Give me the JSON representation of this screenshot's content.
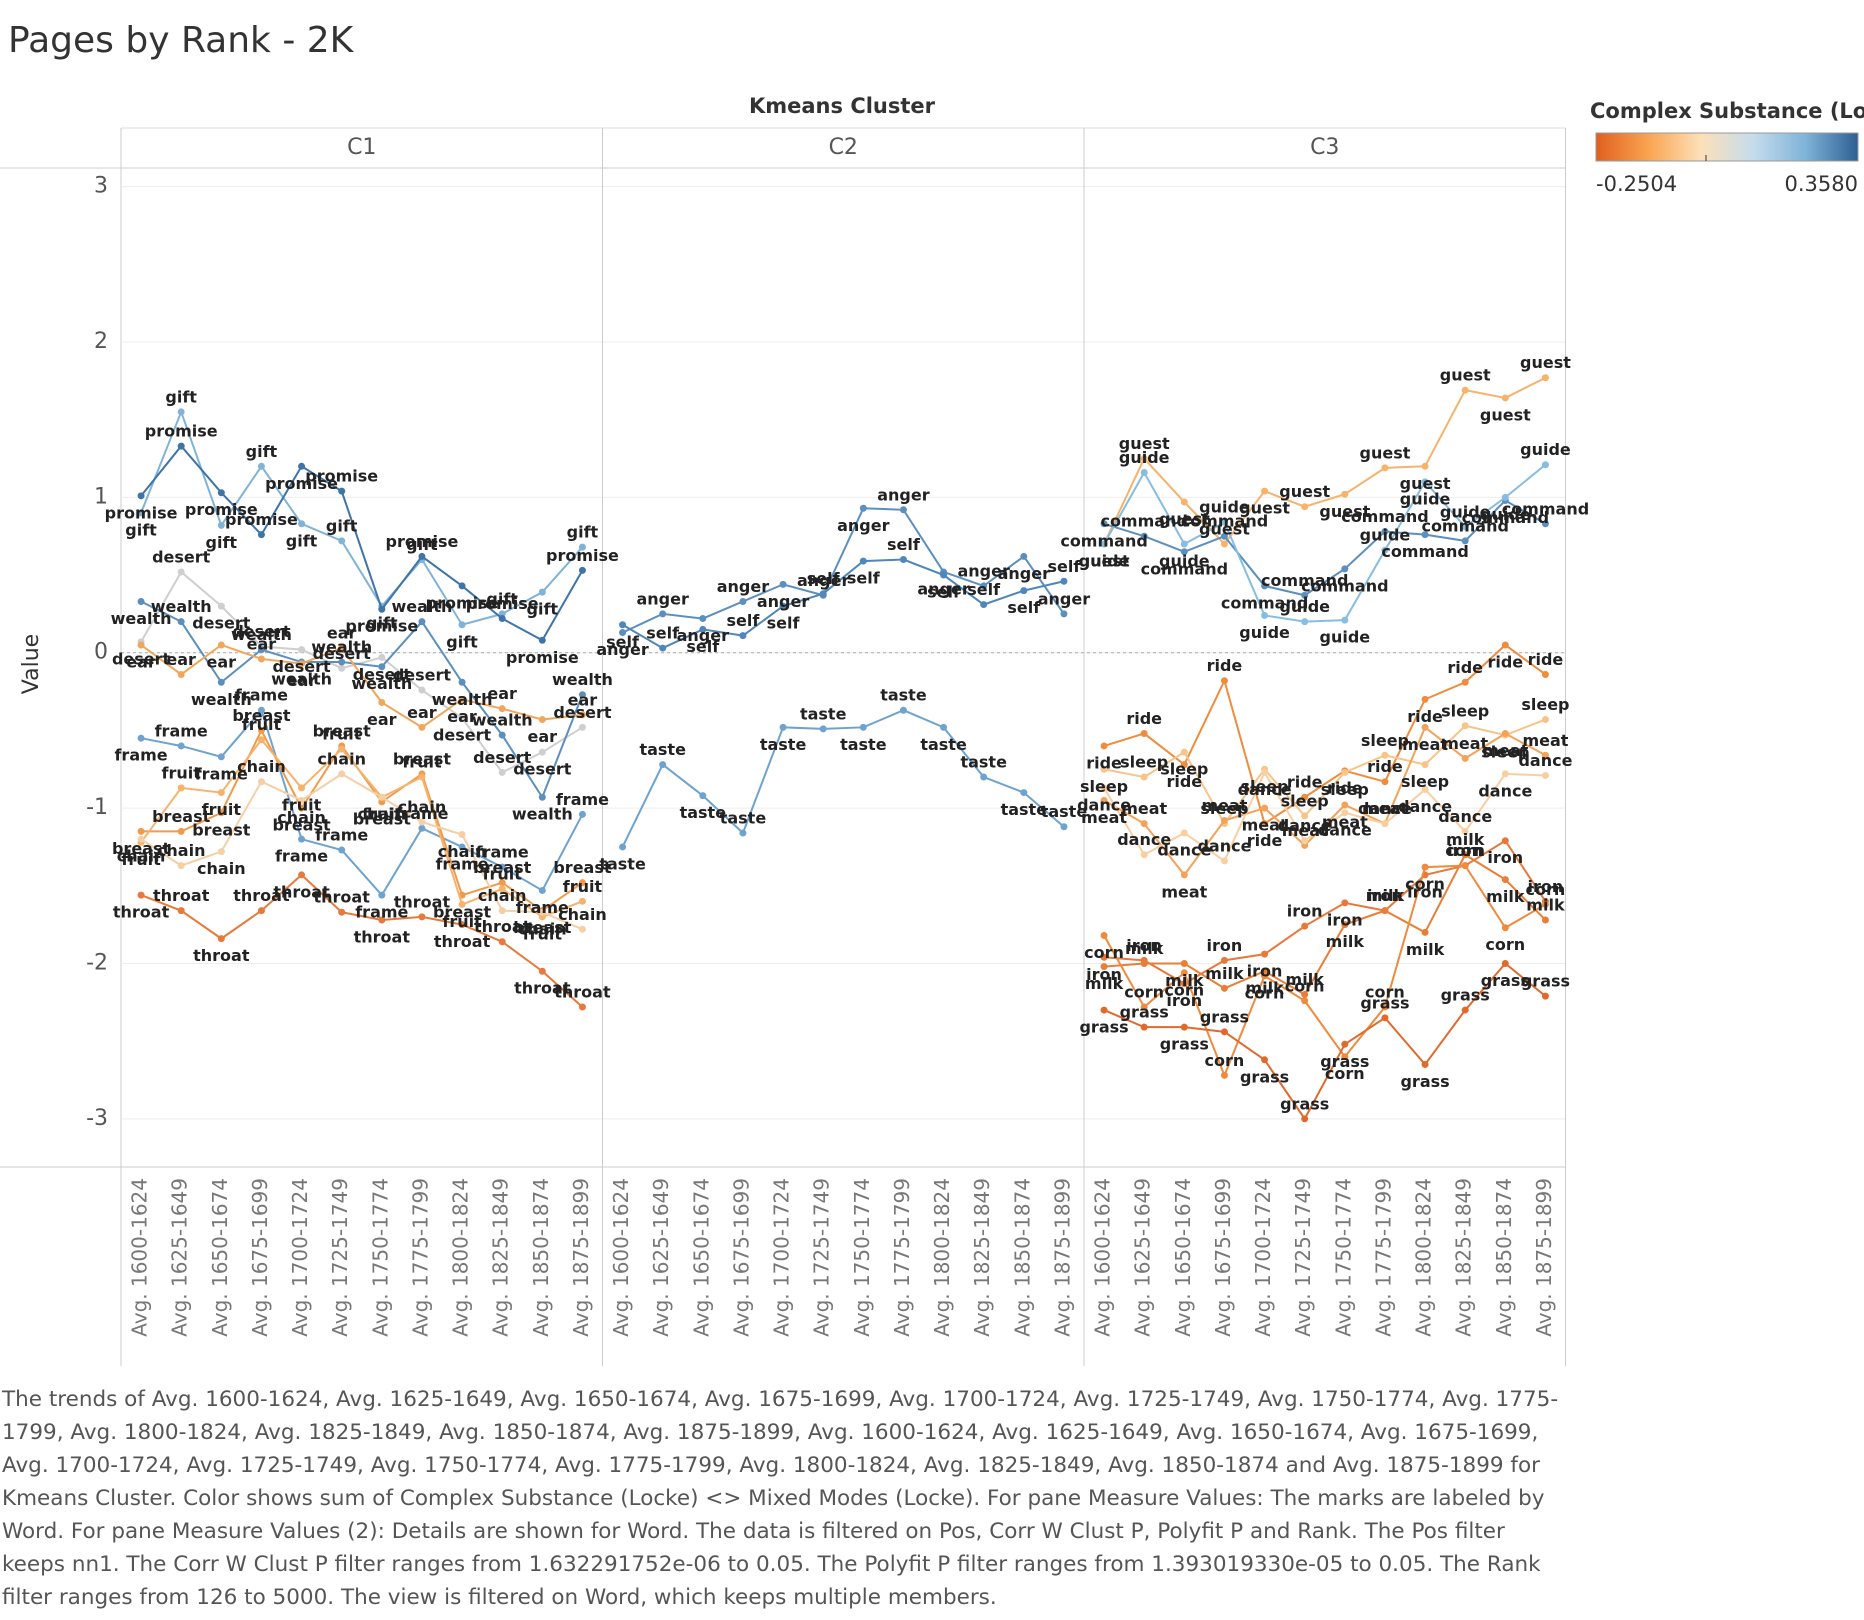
{
  "chart_data": {
    "type": "line",
    "title": "Pages by Rank - 2K",
    "facet_title": "Kmeans Cluster",
    "y_label": "Value",
    "ylim": [
      -3.31,
      3.12
    ],
    "yticks": [
      -3,
      -2,
      -1,
      0,
      1,
      2,
      3
    ],
    "zero_line": true,
    "categories": [
      "Avg. 1600-1624",
      "Avg. 1625-1649",
      "Avg. 1650-1674",
      "Avg. 1675-1699",
      "Avg. 1700-1724",
      "Avg. 1725-1749",
      "Avg. 1750-1774",
      "Avg. 1775-1799",
      "Avg. 1800-1824",
      "Avg. 1825-1849",
      "Avg. 1850-1874",
      "Avg. 1875-1899"
    ],
    "panes": [
      {
        "name": "C1",
        "series": [
          {
            "name": "gift",
            "color": "#7fb3d8",
            "values": [
              0.9,
              1.55,
              0.82,
              1.2,
              0.83,
              0.72,
              0.3,
              0.6,
              0.18,
              0.25,
              0.39,
              0.68
            ]
          },
          {
            "name": "promise",
            "color": "#3f74a8",
            "values": [
              1.01,
              1.33,
              1.03,
              0.76,
              1.2,
              1.04,
              0.28,
              0.62,
              0.43,
              0.22,
              0.08,
              0.53
            ]
          },
          {
            "name": "desert",
            "color": "#cfcfcf",
            "values": [
              0.07,
              0.52,
              0.3,
              0.04,
              0.02,
              -0.1,
              -0.03,
              -0.24,
              -0.42,
              -0.77,
              -0.64,
              -0.48
            ]
          },
          {
            "name": "wealth",
            "color": "#5b8fc0",
            "values": [
              0.33,
              0.2,
              -0.19,
              0.02,
              -0.06,
              -0.06,
              -0.09,
              0.2,
              -0.19,
              -0.53,
              -0.93,
              -0.27
            ]
          },
          {
            "name": "ear",
            "color": "#f2a65a",
            "values": [
              0.05,
              -0.14,
              0.05,
              -0.04,
              -0.07,
              0.03,
              -0.32,
              -0.48,
              -0.3,
              -0.36,
              -0.43,
              -0.4
            ]
          },
          {
            "name": "frame",
            "color": "#6ea3d0",
            "values": [
              -0.55,
              -0.6,
              -0.67,
              -0.37,
              -1.2,
              -1.27,
              -1.56,
              -1.13,
              -1.25,
              -1.38,
              -1.53,
              -1.04
            ]
          },
          {
            "name": "breast",
            "color": "#f39a4a",
            "values": [
              -1.15,
              -1.15,
              -1.03,
              -0.5,
              -1.0,
              -0.6,
              -0.96,
              -0.78,
              -1.56,
              -1.48,
              -1.66,
              -1.48
            ]
          },
          {
            "name": "fruit",
            "color": "#f7b26b",
            "values": [
              -1.22,
              -0.87,
              -0.9,
              -0.56,
              -0.87,
              -0.62,
              -0.93,
              -0.8,
              -1.62,
              -1.52,
              -1.7,
              -1.6
            ]
          },
          {
            "name": "chain",
            "color": "#f5cfa5",
            "values": [
              -1.2,
              -1.37,
              -1.28,
              -0.83,
              -0.95,
              -0.78,
              -0.93,
              -1.09,
              -1.17,
              -1.66,
              -1.67,
              -1.78
            ]
          },
          {
            "name": "throat",
            "color": "#e8793a",
            "values": [
              -1.56,
              -1.66,
              -1.84,
              -1.66,
              -1.43,
              -1.67,
              -1.72,
              -1.7,
              -1.75,
              -1.86,
              -2.05,
              -2.28
            ]
          }
        ]
      },
      {
        "name": "C2",
        "series": [
          {
            "name": "anger",
            "color": "#5b8fc0",
            "values": [
              0.13,
              0.25,
              0.22,
              0.33,
              0.44,
              0.37,
              0.93,
              0.92,
              0.52,
              0.43,
              0.62,
              0.25
            ]
          },
          {
            "name": "self",
            "color": "#4f86bd",
            "values": [
              0.18,
              0.03,
              0.15,
              0.11,
              0.3,
              0.38,
              0.59,
              0.6,
              0.5,
              0.31,
              0.4,
              0.46
            ]
          },
          {
            "name": "taste",
            "color": "#6ea3d0",
            "values": [
              -1.25,
              -0.72,
              -0.92,
              -1.16,
              -0.48,
              -0.49,
              -0.48,
              -0.37,
              -0.48,
              -0.8,
              -0.9,
              -1.12
            ]
          }
        ]
      },
      {
        "name": "C3",
        "series": [
          {
            "name": "guest",
            "color": "#f7b26b",
            "values": [
              0.7,
              1.25,
              0.97,
              0.7,
              1.04,
              0.94,
              1.02,
              1.19,
              1.2,
              1.69,
              1.64,
              1.77
            ]
          },
          {
            "name": "command",
            "color": "#5b8fc0",
            "values": [
              0.83,
              0.75,
              0.65,
              0.75,
              0.43,
              0.37,
              0.54,
              0.78,
              0.76,
              0.72,
              0.98,
              0.83
            ]
          },
          {
            "name": "guide",
            "color": "#86bde0",
            "values": [
              0.7,
              1.16,
              0.7,
              0.84,
              0.24,
              0.2,
              0.21,
              0.66,
              1.1,
              0.81,
              1.0,
              1.21
            ]
          },
          {
            "name": "ride",
            "color": "#ef8c3e",
            "values": [
              -0.6,
              -0.52,
              -0.72,
              -0.18,
              -1.1,
              -0.93,
              -0.76,
              -0.83,
              -0.3,
              -0.19,
              0.05,
              -0.14
            ]
          },
          {
            "name": "sleep",
            "color": "#f8c48a",
            "values": [
              -0.75,
              -0.8,
              -0.64,
              -1.1,
              -0.75,
              -1.05,
              -0.77,
              -0.66,
              -0.72,
              -0.47,
              -0.53,
              -0.43
            ]
          },
          {
            "name": "meat",
            "color": "#f4a259",
            "values": [
              -0.95,
              -1.1,
              -1.43,
              -1.08,
              -1.0,
              -1.24,
              -0.98,
              -1.1,
              -0.48,
              -0.68,
              -0.52,
              -0.66
            ]
          },
          {
            "name": "dance",
            "color": "#f9cfa2",
            "values": [
              -0.87,
              -1.3,
              -1.16,
              -1.34,
              -0.77,
              -1.21,
              -1.03,
              -1.1,
              -0.88,
              -1.15,
              -0.78,
              -0.79
            ]
          },
          {
            "name": "iron",
            "color": "#e8793a",
            "values": [
              -1.96,
              -1.98,
              -2.13,
              -1.98,
              -1.94,
              -1.76,
              -1.61,
              -1.66,
              -1.43,
              -1.37,
              -1.21,
              -1.6
            ]
          },
          {
            "name": "milk",
            "color": "#ea7e36",
            "values": [
              -2.02,
              -2.0,
              -2.0,
              -2.16,
              -2.05,
              -2.2,
              -1.75,
              -1.66,
              -1.8,
              -1.3,
              -1.46,
              -1.72
            ]
          },
          {
            "name": "corn",
            "color": "#f08a3c",
            "values": [
              -1.82,
              -2.28,
              -2.06,
              -2.72,
              -2.08,
              -2.24,
              -2.6,
              -2.28,
              -1.38,
              -1.37,
              -1.77,
              -1.62
            ]
          },
          {
            "name": "grass",
            "color": "#e06a2c",
            "values": [
              -2.3,
              -2.41,
              -2.41,
              -2.44,
              -2.62,
              -3.0,
              -2.52,
              -2.35,
              -2.65,
              -2.3,
              -2.0,
              -2.21
            ]
          }
        ]
      }
    ],
    "legend": {
      "title": "Complex Substance (Lo..",
      "min": -0.2504,
      "max": {
        "value": 0.358,
        "label": "0.3580"
      },
      "colors": [
        "#e0601f",
        "#f9a451",
        "#fde0b8",
        "#c5dced",
        "#7fb3d8",
        "#2d5f93"
      ]
    },
    "caption": "The trends of Avg. 1600-1624, Avg. 1625-1649, Avg. 1650-1674, Avg. 1675-1699, Avg. 1700-1724, Avg. 1725-1749, Avg. 1750-1774, Avg. 1775-1799, Avg. 1800-1824, Avg. 1825-1849, Avg. 1850-1874, Avg. 1875-1899, Avg. 1600-1624, Avg. 1625-1649, Avg. 1650-1674, Avg. 1675-1699, Avg. 1700-1724, Avg. 1725-1749, Avg. 1750-1774, Avg. 1775-1799, Avg. 1800-1824, Avg. 1825-1849, Avg. 1850-1874 and Avg. 1875-1899 for Kmeans Cluster.  Color shows sum of Complex Substance (Locke) <> Mixed Modes (Locke).  For pane Measure Values:  The marks are labeled by Word.  For pane Measure Values (2):  Details are shown for Word. The data is filtered on Pos, Corr W Clust P, Polyfit P and Rank. The Pos filter keeps nn1. The Corr W Clust P filter ranges from 1.632291752e-06 to 0.05. The Polyfit P filter ranges from 1.393019330e-05 to 0.05. The Rank filter ranges from 126 to 5000. The view is filtered on Word, which keeps multiple members."
  }
}
